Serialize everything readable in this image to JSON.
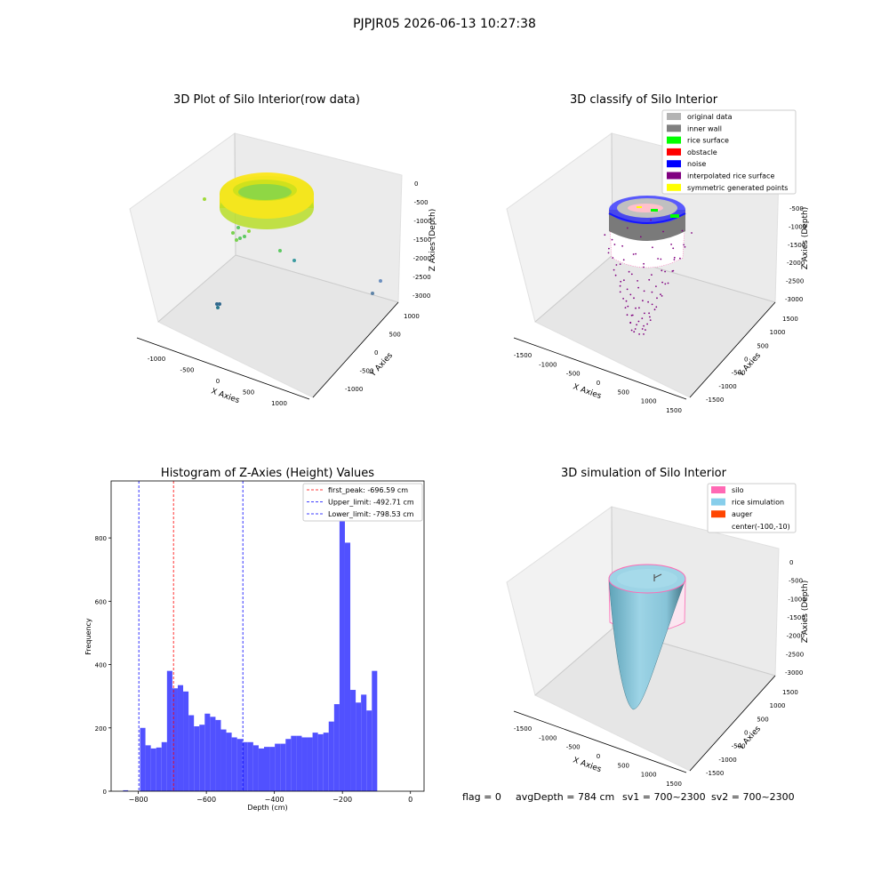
{
  "suptitle": "PJPJR05 2026-06-13 10:27:38",
  "status_line": {
    "flag": "flag = 0",
    "avg_depth": "avgDepth = 784 cm",
    "sv1": "sv1 = 700~2300",
    "sv2": "sv2 = 700~2300"
  },
  "chart_data": [
    {
      "type": "scatter",
      "projection": "3d",
      "title": "3D Plot of Silo Interior(row data)",
      "xlabel": "X Axies",
      "ylabel": "Y Axies",
      "zlabel": "Z Axies (Depth)",
      "xticks": [
        "-1000",
        "-500",
        "0",
        "500",
        "1000"
      ],
      "yticks": [
        "-1000",
        "-500",
        "0",
        "500",
        "1000"
      ],
      "zticks": [
        "0",
        "-500",
        "-1000",
        "-1500",
        "-2000",
        "-2500",
        "-3000"
      ],
      "colormap": "viridis"
    },
    {
      "type": "scatter",
      "projection": "3d",
      "title": "3D classify of Silo Interior",
      "xlabel": "X Axies",
      "ylabel": "Y Axies",
      "zlabel": "Z Axies (Depth)",
      "xticks": [
        "-1500",
        "-1000",
        "-500",
        "0",
        "500",
        "1000",
        "1500"
      ],
      "yticks": [
        "-1500",
        "-1000",
        "-500",
        "0",
        "500",
        "1000",
        "1500"
      ],
      "zticks": [
        "-500",
        "-1000",
        "-1500",
        "-2000",
        "-2500",
        "-3000"
      ],
      "legend_position": "top-right",
      "legend": [
        {
          "label": "original data",
          "color": "#b3b3b3"
        },
        {
          "label": "inner wall",
          "color": "#808080"
        },
        {
          "label": "rice surface",
          "color": "#00ff00"
        },
        {
          "label": "obstacle",
          "color": "#ff0000"
        },
        {
          "label": "noise",
          "color": "#0000ff"
        },
        {
          "label": "interpolated rice surface",
          "color": "#800080"
        },
        {
          "label": "symmetric generated points",
          "color": "#ffff00"
        }
      ]
    },
    {
      "type": "bar",
      "title": "Histogram of Z-Axies (Height) Values",
      "xlabel": "Depth (cm)",
      "ylabel": "Frequency",
      "xlim": [
        -880,
        40
      ],
      "ylim": [
        0,
        980
      ],
      "xticks": [
        -800,
        -600,
        -400,
        -200,
        0
      ],
      "yticks": [
        0,
        200,
        400,
        600,
        800
      ],
      "bin_start": -795,
      "bin_width": 15.85,
      "counts": [
        200,
        145,
        135,
        138,
        155,
        380,
        325,
        335,
        315,
        240,
        205,
        210,
        245,
        235,
        225,
        195,
        185,
        170,
        165,
        155,
        155,
        145,
        135,
        140,
        140,
        150,
        150,
        165,
        175,
        175,
        170,
        170,
        185,
        180,
        185,
        220,
        275,
        930,
        785,
        320,
        280,
        305,
        255,
        380
      ],
      "bar_color": "#5151ff",
      "lines": [
        {
          "x": -696.59,
          "color": "#ff0000",
          "label": "first_peak: -696.59 cm"
        },
        {
          "x": -492.71,
          "color": "#0000ff",
          "label": "Upper_limit: -492.71 cm"
        },
        {
          "x": -798.53,
          "color": "#0000ff",
          "label": "Lower_limit: -798.53 cm"
        }
      ],
      "legend_position": "top-right"
    },
    {
      "type": "surface",
      "projection": "3d",
      "title": "3D simulation of Silo Interior",
      "xlabel": "X Axies",
      "ylabel": "Y Axies",
      "zlabel": "Z Axies (Depth)",
      "xticks": [
        "-1500",
        "-1000",
        "-500",
        "0",
        "500",
        "1000",
        "1500"
      ],
      "yticks": [
        "-1500",
        "-1000",
        "-500",
        "0",
        "500",
        "1000",
        "1500"
      ],
      "zticks": [
        "0",
        "-500",
        "-1000",
        "-1500",
        "-2000",
        "-2500",
        "-3000"
      ],
      "legend_position": "top-right",
      "legend": [
        {
          "label": "silo",
          "color": "#ff69b4"
        },
        {
          "label": "rice simulation",
          "color": "#87ceeb"
        },
        {
          "label": "auger",
          "color": "#ff4500"
        },
        {
          "label": "center(-100,-10)",
          "color": ""
        }
      ]
    }
  ]
}
